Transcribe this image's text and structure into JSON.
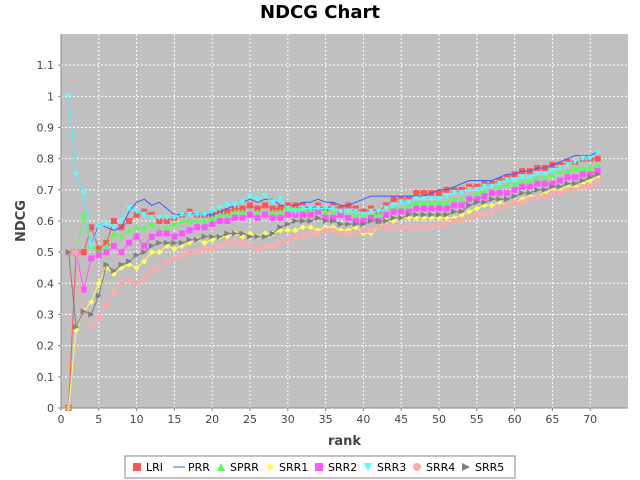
{
  "chart_data": {
    "type": "line",
    "title": "NDCG Chart",
    "xlabel": "rank",
    "ylabel": "NDCG",
    "xlim": [
      0,
      75
    ],
    "ylim": [
      0,
      1.2
    ],
    "xticks": [
      0,
      5,
      10,
      15,
      20,
      25,
      30,
      35,
      40,
      45,
      50,
      55,
      60,
      65,
      70
    ],
    "yticks": [
      0,
      0.1,
      0.2,
      0.3,
      0.4,
      0.5,
      0.6,
      0.7,
      0.8,
      0.9,
      1,
      1.1
    ],
    "ytick_labels": [
      "0",
      "0.1",
      "0.2",
      "0.3",
      "0.4",
      "0.5",
      "0.6",
      "0.7",
      "0.8",
      "0.9",
      "1",
      "1.1"
    ],
    "grid": true,
    "legend_position": "bottom",
    "background_color": "#c0c0c0",
    "grid_color": "#ffffff",
    "series": [
      {
        "name": "LRI",
        "marker": "square",
        "color": "#ff5555",
        "values": [
          0,
          0.5,
          0.5,
          0.58,
          0.51,
          0.53,
          0.6,
          0.58,
          0.6,
          0.62,
          0.63,
          0.62,
          0.6,
          0.6,
          0.61,
          0.62,
          0.63,
          0.62,
          0.62,
          0.62,
          0.63,
          0.63,
          0.64,
          0.64,
          0.65,
          0.64,
          0.65,
          0.64,
          0.64,
          0.65,
          0.65,
          0.65,
          0.64,
          0.65,
          0.64,
          0.65,
          0.64,
          0.65,
          0.64,
          0.63,
          0.64,
          0.63,
          0.65,
          0.67,
          0.67,
          0.67,
          0.69,
          0.69,
          0.69,
          0.69,
          0.7,
          0.7,
          0.7,
          0.71,
          0.71,
          0.72,
          0.72,
          0.73,
          0.74,
          0.75,
          0.76,
          0.76,
          0.77,
          0.77,
          0.78,
          0.78,
          0.79,
          0.79,
          0.8,
          0.8,
          0.8
        ]
      },
      {
        "name": "PRR",
        "marker": "none",
        "color": "#3b5bff",
        "values": [
          1,
          0.75,
          0.69,
          0.52,
          0.59,
          0.58,
          0.57,
          0.58,
          0.63,
          0.66,
          0.67,
          0.65,
          0.66,
          0.64,
          0.62,
          0.62,
          0.62,
          0.62,
          0.62,
          0.62,
          0.63,
          0.64,
          0.65,
          0.66,
          0.67,
          0.66,
          0.67,
          0.67,
          0.65,
          0.65,
          0.65,
          0.66,
          0.66,
          0.67,
          0.66,
          0.66,
          0.65,
          0.65,
          0.66,
          0.67,
          0.68,
          0.68,
          0.68,
          0.68,
          0.68,
          0.68,
          0.68,
          0.68,
          0.69,
          0.7,
          0.7,
          0.71,
          0.72,
          0.73,
          0.73,
          0.73,
          0.73,
          0.74,
          0.75,
          0.75,
          0.76,
          0.76,
          0.77,
          0.77,
          0.78,
          0.79,
          0.8,
          0.81,
          0.81,
          0.81,
          0.82
        ]
      },
      {
        "name": "SPRR",
        "marker": "triangle-up",
        "color": "#55ff55",
        "values": [
          0.5,
          0.5,
          0.62,
          0.52,
          0.5,
          0.52,
          0.56,
          0.55,
          0.57,
          0.58,
          0.58,
          0.59,
          0.57,
          0.58,
          0.59,
          0.6,
          0.6,
          0.6,
          0.6,
          0.61,
          0.62,
          0.62,
          0.63,
          0.63,
          0.63,
          0.63,
          0.63,
          0.63,
          0.63,
          0.64,
          0.64,
          0.64,
          0.64,
          0.64,
          0.63,
          0.63,
          0.62,
          0.63,
          0.62,
          0.62,
          0.62,
          0.62,
          0.63,
          0.64,
          0.64,
          0.65,
          0.66,
          0.66,
          0.66,
          0.66,
          0.66,
          0.67,
          0.67,
          0.68,
          0.69,
          0.7,
          0.7,
          0.71,
          0.72,
          0.72,
          0.73,
          0.73,
          0.74,
          0.74,
          0.75,
          0.76,
          0.76,
          0.77,
          0.77,
          0.77,
          0.78
        ]
      },
      {
        "name": "SRR1",
        "marker": "diamond",
        "color": "#ffff55",
        "values": [
          0,
          0.25,
          0.31,
          0.34,
          0.4,
          0.45,
          0.43,
          0.45,
          0.46,
          0.45,
          0.47,
          0.5,
          0.5,
          0.52,
          0.51,
          0.52,
          0.53,
          0.54,
          0.53,
          0.54,
          0.55,
          0.55,
          0.56,
          0.55,
          0.56,
          0.55,
          0.56,
          0.56,
          0.57,
          0.57,
          0.57,
          0.58,
          0.58,
          0.57,
          0.58,
          0.58,
          0.57,
          0.57,
          0.58,
          0.56,
          0.56,
          0.58,
          0.6,
          0.6,
          0.61,
          0.61,
          0.61,
          0.61,
          0.61,
          0.61,
          0.61,
          0.61,
          0.62,
          0.63,
          0.64,
          0.65,
          0.65,
          0.66,
          0.65,
          0.66,
          0.67,
          0.68,
          0.68,
          0.69,
          0.7,
          0.7,
          0.71,
          0.71,
          0.72,
          0.73,
          0.74
        ]
      },
      {
        "name": "SRR2",
        "marker": "square",
        "color": "#ff55ff",
        "values": [
          0.5,
          0.5,
          0.38,
          0.48,
          0.49,
          0.5,
          0.52,
          0.5,
          0.53,
          0.55,
          0.52,
          0.55,
          0.56,
          0.56,
          0.55,
          0.56,
          0.57,
          0.58,
          0.58,
          0.59,
          0.6,
          0.6,
          0.61,
          0.61,
          0.62,
          0.61,
          0.62,
          0.61,
          0.61,
          0.62,
          0.62,
          0.62,
          0.62,
          0.63,
          0.61,
          0.61,
          0.62,
          0.61,
          0.6,
          0.6,
          0.61,
          0.6,
          0.62,
          0.63,
          0.63,
          0.63,
          0.64,
          0.64,
          0.64,
          0.64,
          0.64,
          0.65,
          0.65,
          0.67,
          0.67,
          0.68,
          0.69,
          0.69,
          0.69,
          0.7,
          0.71,
          0.71,
          0.72,
          0.72,
          0.72,
          0.73,
          0.74,
          0.74,
          0.75,
          0.75,
          0.76
        ]
      },
      {
        "name": "SRR3",
        "marker": "triangle-down",
        "color": "#55ffff",
        "values": [
          1,
          0.75,
          0.69,
          0.52,
          0.58,
          0.59,
          0.58,
          0.6,
          0.64,
          0.63,
          0.62,
          0.61,
          0.61,
          0.61,
          0.61,
          0.62,
          0.62,
          0.62,
          0.62,
          0.63,
          0.64,
          0.65,
          0.65,
          0.66,
          0.68,
          0.67,
          0.68,
          0.66,
          0.67,
          0.64,
          0.63,
          0.64,
          0.64,
          0.64,
          0.64,
          0.64,
          0.63,
          0.63,
          0.63,
          0.62,
          0.63,
          0.63,
          0.64,
          0.65,
          0.66,
          0.66,
          0.67,
          0.67,
          0.67,
          0.67,
          0.68,
          0.69,
          0.69,
          0.7,
          0.7,
          0.71,
          0.71,
          0.72,
          0.73,
          0.73,
          0.74,
          0.74,
          0.75,
          0.75,
          0.76,
          0.77,
          0.78,
          0.79,
          0.8,
          0.8,
          0.82
        ]
      },
      {
        "name": "SRR4",
        "marker": "circle",
        "color": "#ffaaaa",
        "values": [
          0.5,
          0.5,
          0.3,
          0.26,
          0.29,
          0.33,
          0.37,
          0.4,
          0.41,
          0.4,
          0.42,
          0.44,
          0.45,
          0.47,
          0.48,
          0.49,
          0.5,
          0.5,
          0.51,
          0.51,
          0.52,
          0.53,
          0.53,
          0.53,
          0.52,
          0.51,
          0.52,
          0.52,
          0.53,
          0.54,
          0.55,
          0.55,
          0.56,
          0.56,
          0.57,
          0.57,
          0.56,
          0.56,
          0.56,
          0.57,
          0.57,
          0.58,
          0.58,
          0.58,
          0.58,
          0.58,
          0.58,
          0.58,
          0.58,
          0.59,
          0.59,
          0.6,
          0.6,
          0.61,
          0.62,
          0.62,
          0.63,
          0.64,
          0.65,
          0.66,
          0.66,
          0.67,
          0.68,
          0.68,
          0.69,
          0.69,
          0.7,
          0.7,
          0.71,
          0.71,
          0.73
        ]
      },
      {
        "name": "SRR5",
        "marker": "triangle-right",
        "color": "#808080",
        "values": [
          0.5,
          0.26,
          0.31,
          0.3,
          0.36,
          0.46,
          0.44,
          0.46,
          0.47,
          0.49,
          0.5,
          0.52,
          0.53,
          0.53,
          0.53,
          0.53,
          0.54,
          0.54,
          0.55,
          0.55,
          0.55,
          0.56,
          0.56,
          0.56,
          0.55,
          0.55,
          0.55,
          0.56,
          0.58,
          0.59,
          0.6,
          0.6,
          0.6,
          0.61,
          0.6,
          0.6,
          0.59,
          0.59,
          0.59,
          0.59,
          0.6,
          0.6,
          0.6,
          0.61,
          0.61,
          0.62,
          0.62,
          0.62,
          0.62,
          0.62,
          0.62,
          0.63,
          0.63,
          0.65,
          0.66,
          0.66,
          0.67,
          0.67,
          0.67,
          0.68,
          0.69,
          0.69,
          0.7,
          0.7,
          0.71,
          0.71,
          0.72,
          0.72,
          0.73,
          0.74,
          0.75
        ]
      }
    ]
  }
}
